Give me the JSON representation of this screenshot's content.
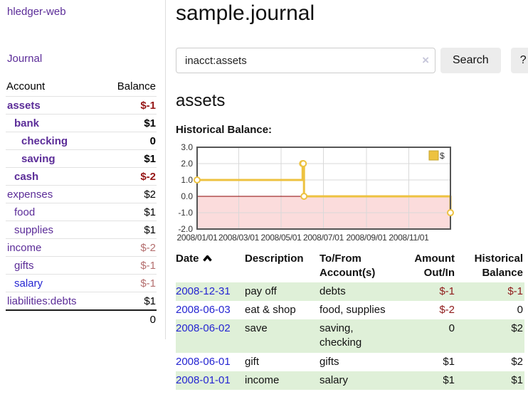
{
  "colors": {
    "link_purple": "#5b2c98",
    "link_blue": "#2525d2",
    "negative_bold": "#961717",
    "negative_muted": "#b46e6e",
    "table_negative": "#8f1b1b",
    "stripe_green": "#dff0d8",
    "button_gray": "#ececec",
    "divider_gray": "#dddddd"
  },
  "sidebar": {
    "app_title": "hledger-web",
    "nav_journal": "Journal",
    "table": {
      "account_header": "Account",
      "balance_header": "Balance",
      "rows": [
        {
          "account": "assets",
          "level": 1,
          "bold": true,
          "balance": "$-1",
          "negative": true
        },
        {
          "account": "bank",
          "level": 2,
          "bold": true,
          "balance": "$1",
          "negative": false
        },
        {
          "account": "checking",
          "level": 3,
          "bold": true,
          "balance": "0",
          "negative": false
        },
        {
          "account": "saving",
          "level": 3,
          "bold": true,
          "balance": "$1",
          "negative": false
        },
        {
          "account": "cash",
          "level": 2,
          "bold": true,
          "balance": "$-2",
          "negative": true
        },
        {
          "account": "expenses",
          "level": 1,
          "bold": false,
          "balance": "$2",
          "negative": false
        },
        {
          "account": "food",
          "level": 2,
          "bold": false,
          "balance": "$1",
          "negative": false
        },
        {
          "account": "supplies",
          "level": 2,
          "bold": false,
          "balance": "$1",
          "negative": false
        },
        {
          "account": "income",
          "level": 1,
          "bold": false,
          "balance": "$-2",
          "negative": true
        },
        {
          "account": "gifts",
          "level": 2,
          "bold": false,
          "balance": "$-1",
          "negative": true
        },
        {
          "account": "salary",
          "level": 2,
          "bold": false,
          "balance": "$-1",
          "negative": true,
          "link_color": "blue"
        },
        {
          "account": "liabilities:debts",
          "level": 1,
          "bold": false,
          "balance": "$1",
          "negative": false
        }
      ],
      "total": "0"
    }
  },
  "main": {
    "title": "sample.journal",
    "search": {
      "value": "inacct:assets",
      "clear_icon": "×",
      "button": "Search",
      "help_button": "?"
    },
    "account_heading": "assets",
    "chart_label": "Historical Balance:",
    "register_table": {
      "headers": {
        "date": "Date",
        "description": "Description",
        "tofrom": "To/From Account(s)",
        "amount": "Amount Out/In",
        "balance": "Historical Balance"
      },
      "rows": [
        {
          "date": "2008-12-31",
          "description": "pay off",
          "accounts": "debts",
          "amount": "$-1",
          "amount_negative": true,
          "balance": "$-1",
          "balance_negative": true
        },
        {
          "date": "2008-06-03",
          "description": "eat & shop",
          "accounts": "food, supplies",
          "amount": "$-2",
          "amount_negative": true,
          "balance": "0",
          "balance_negative": false
        },
        {
          "date": "2008-06-02",
          "description": "save",
          "accounts": "saving, checking",
          "amount": "0",
          "amount_negative": false,
          "balance": "$2",
          "balance_negative": false
        },
        {
          "date": "2008-06-01",
          "description": "gift",
          "accounts": "gifts",
          "amount": "$1",
          "amount_negative": false,
          "balance": "$2",
          "balance_negative": false
        },
        {
          "date": "2008-01-01",
          "description": "income",
          "accounts": "salary",
          "amount": "$1",
          "amount_negative": false,
          "balance": "$1",
          "balance_negative": false
        }
      ]
    }
  },
  "chart_data": {
    "type": "line",
    "subtype": "step-after",
    "title": "Historical Balance",
    "xlabel": "",
    "ylabel": "",
    "legend_position": "top-right",
    "grid": true,
    "ylim": [
      -2,
      3
    ],
    "xlim_days": [
      0,
      365
    ],
    "y_ticks": [
      3.0,
      2.0,
      1.0,
      0.0,
      -1.0,
      -2.0
    ],
    "x_ticks": [
      {
        "label": "2008/01/01",
        "day": 0
      },
      {
        "label": "2008/03/01",
        "day": 60
      },
      {
        "label": "2008/05/01",
        "day": 121
      },
      {
        "label": "2008/07/01",
        "day": 182
      },
      {
        "label": "2008/09/01",
        "day": 244
      },
      {
        "label": "2008/11/01",
        "day": 305
      }
    ],
    "series": [
      {
        "name": "$",
        "color": "#edc240",
        "marker_fill": "#ffffff",
        "legend_swatch_border": "#c5a42e",
        "points": [
          {
            "date": "2008-01-01",
            "day": 0,
            "value": 1
          },
          {
            "date": "2008-06-01",
            "day": 152,
            "value": 2
          },
          {
            "date": "2008-06-02",
            "day": 153,
            "value": 2
          },
          {
            "date": "2008-06-03",
            "day": 154,
            "value": 0
          },
          {
            "date": "2008-12-31",
            "day": 365,
            "value": -1
          }
        ]
      }
    ],
    "colors": {
      "grid": "#d9d9d9",
      "border": "#555555",
      "zero_line": "#8b0000",
      "negative_region": "#fbdcdc",
      "tick_text": "#333333"
    }
  }
}
